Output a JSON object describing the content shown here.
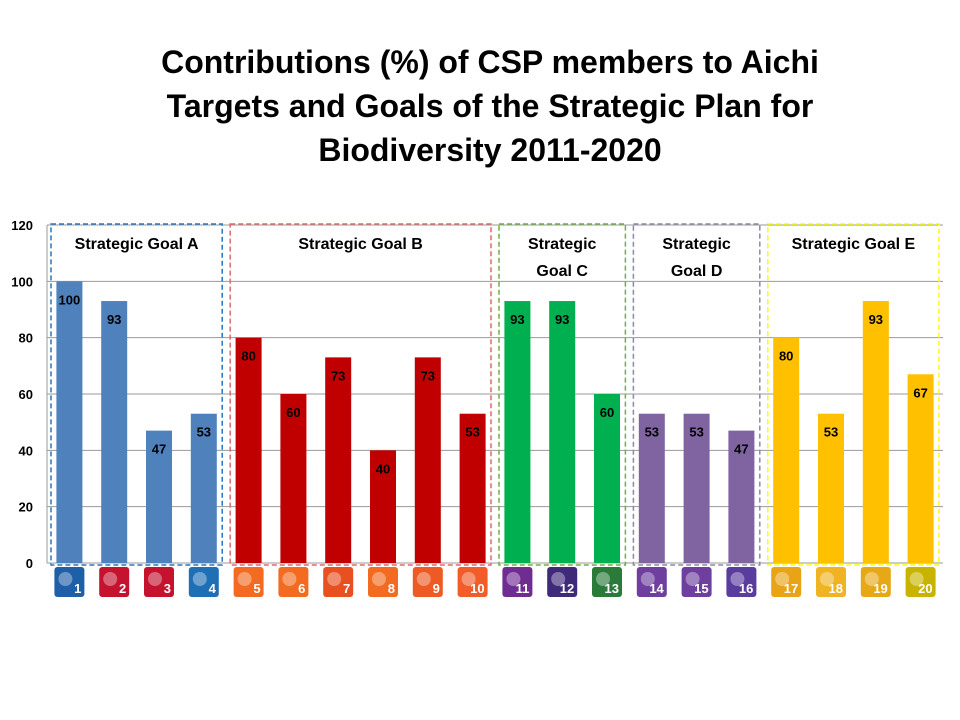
{
  "title": "Contributions (%) of CSP members to Aichi Targets and Goals of the Strategic Plan for Biodiversity 2011-2020",
  "chart_data": {
    "type": "bar",
    "title": "Contributions (%) of CSP members to Aichi Targets and Goals of the Strategic Plan for Biodiversity 2011-2020",
    "xlabel": "",
    "ylabel": "",
    "ylim": [
      0,
      120
    ],
    "yticks": [
      "0",
      "20",
      "40",
      "60",
      "80",
      "100",
      "120"
    ],
    "grid": true,
    "categories": [
      "1",
      "2",
      "3",
      "4",
      "5",
      "6",
      "7",
      "8",
      "9",
      "10",
      "11",
      "12",
      "13",
      "14",
      "15",
      "16",
      "17",
      "18",
      "19",
      "20"
    ],
    "values": [
      100,
      93,
      47,
      53,
      80,
      60,
      73,
      40,
      73,
      53,
      93,
      93,
      60,
      53,
      53,
      47,
      80,
      53,
      93,
      67
    ],
    "groups": [
      {
        "label_lines": [
          "Strategic Goal A"
        ],
        "targets": [
          1,
          4
        ],
        "color": "#4f81bd",
        "border": "#2e75b6"
      },
      {
        "label_lines": [
          "Strategic Goal B"
        ],
        "targets": [
          5,
          10
        ],
        "color": "#c00000",
        "border": "#e06666"
      },
      {
        "label_lines": [
          "Strategic",
          "Goal C"
        ],
        "targets": [
          11,
          13
        ],
        "color": "#00b050",
        "border": "#70ad47"
      },
      {
        "label_lines": [
          "Strategic",
          "Goal D"
        ],
        "targets": [
          14,
          16
        ],
        "color": "#8064a2",
        "border": "#8e86ae"
      },
      {
        "label_lines": [
          "Strategic Goal E"
        ],
        "targets": [
          17,
          20
        ],
        "color": "#ffc000",
        "border": "#ffff00"
      }
    ]
  },
  "icon_colors": [
    "#1f5fa8",
    "#c4122f",
    "#c4122f",
    "#1f6fb5",
    "#f26b21",
    "#f26b21",
    "#e8501f",
    "#f26b21",
    "#ee5a24",
    "#f25c29",
    "#6f2c91",
    "#3f2a7a",
    "#2a7a3a",
    "#6f3fa0",
    "#6f3fa0",
    "#5a3c9e",
    "#e8a317",
    "#f0b323",
    "#e6a817",
    "#c8b400"
  ]
}
